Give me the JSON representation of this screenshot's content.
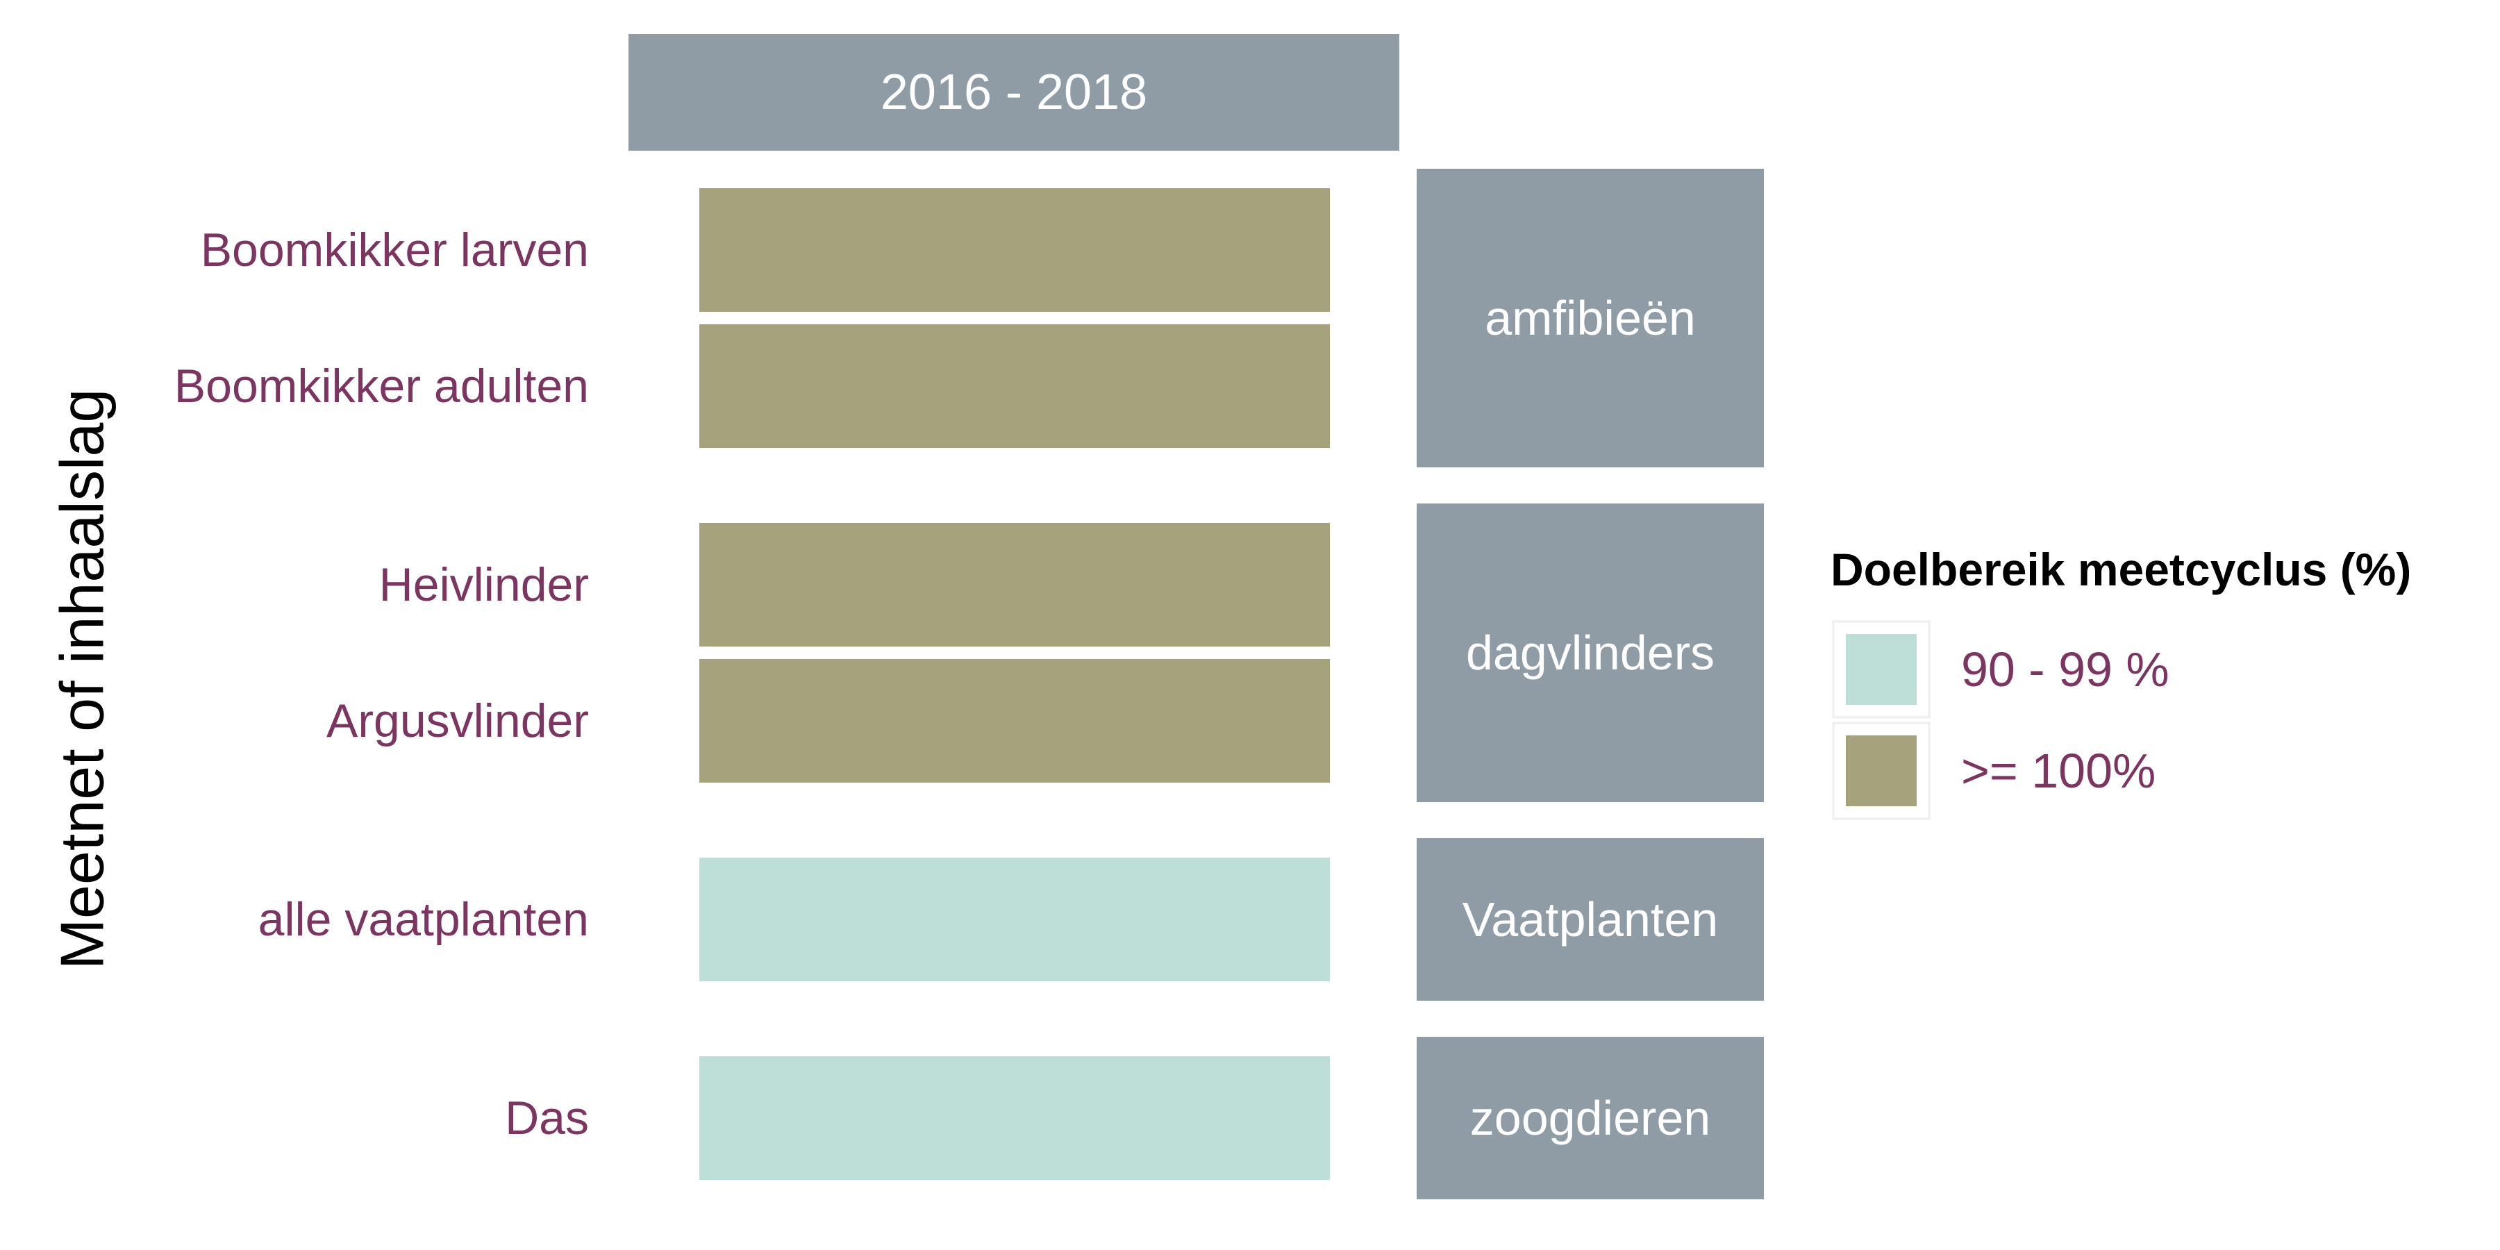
{
  "chart_data": {
    "type": "heatmap",
    "column_header": "2016 - 2018",
    "ylabel": "Meetnet of inhaalslag",
    "rows": [
      {
        "label": "Boomkikker larven",
        "group": "amfibieën",
        "category": ">= 100%"
      },
      {
        "label": "Boomkikker adulten",
        "group": "amfibieën",
        "category": ">= 100%"
      },
      {
        "label": "Heivlinder",
        "group": "dagvlinders",
        "category": ">= 100%"
      },
      {
        "label": "Argusvlinder",
        "group": "dagvlinders",
        "category": ">= 100%"
      },
      {
        "label": "alle vaatplanten",
        "group": "Vaatplanten",
        "category": "90 - 99 %"
      },
      {
        "label": "Das",
        "group": "zoogdieren",
        "category": "90 - 99 %"
      }
    ],
    "groups": [
      "amfibieën",
      "dagvlinders",
      "Vaatplanten",
      "zoogdieren"
    ],
    "legend": {
      "title": "Doelbereik meetcyclus (%)",
      "position": "right",
      "entries": [
        {
          "label": "90 - 99 %",
          "color": "#bddfd7"
        },
        {
          "label": ">= 100%",
          "color": "#a6a27b"
        }
      ]
    },
    "colors": {
      "strip": "#8f9ca6",
      "strip_text": "#ffffff",
      "row_label": "#7b3560",
      "axis_title": "#000000"
    }
  }
}
